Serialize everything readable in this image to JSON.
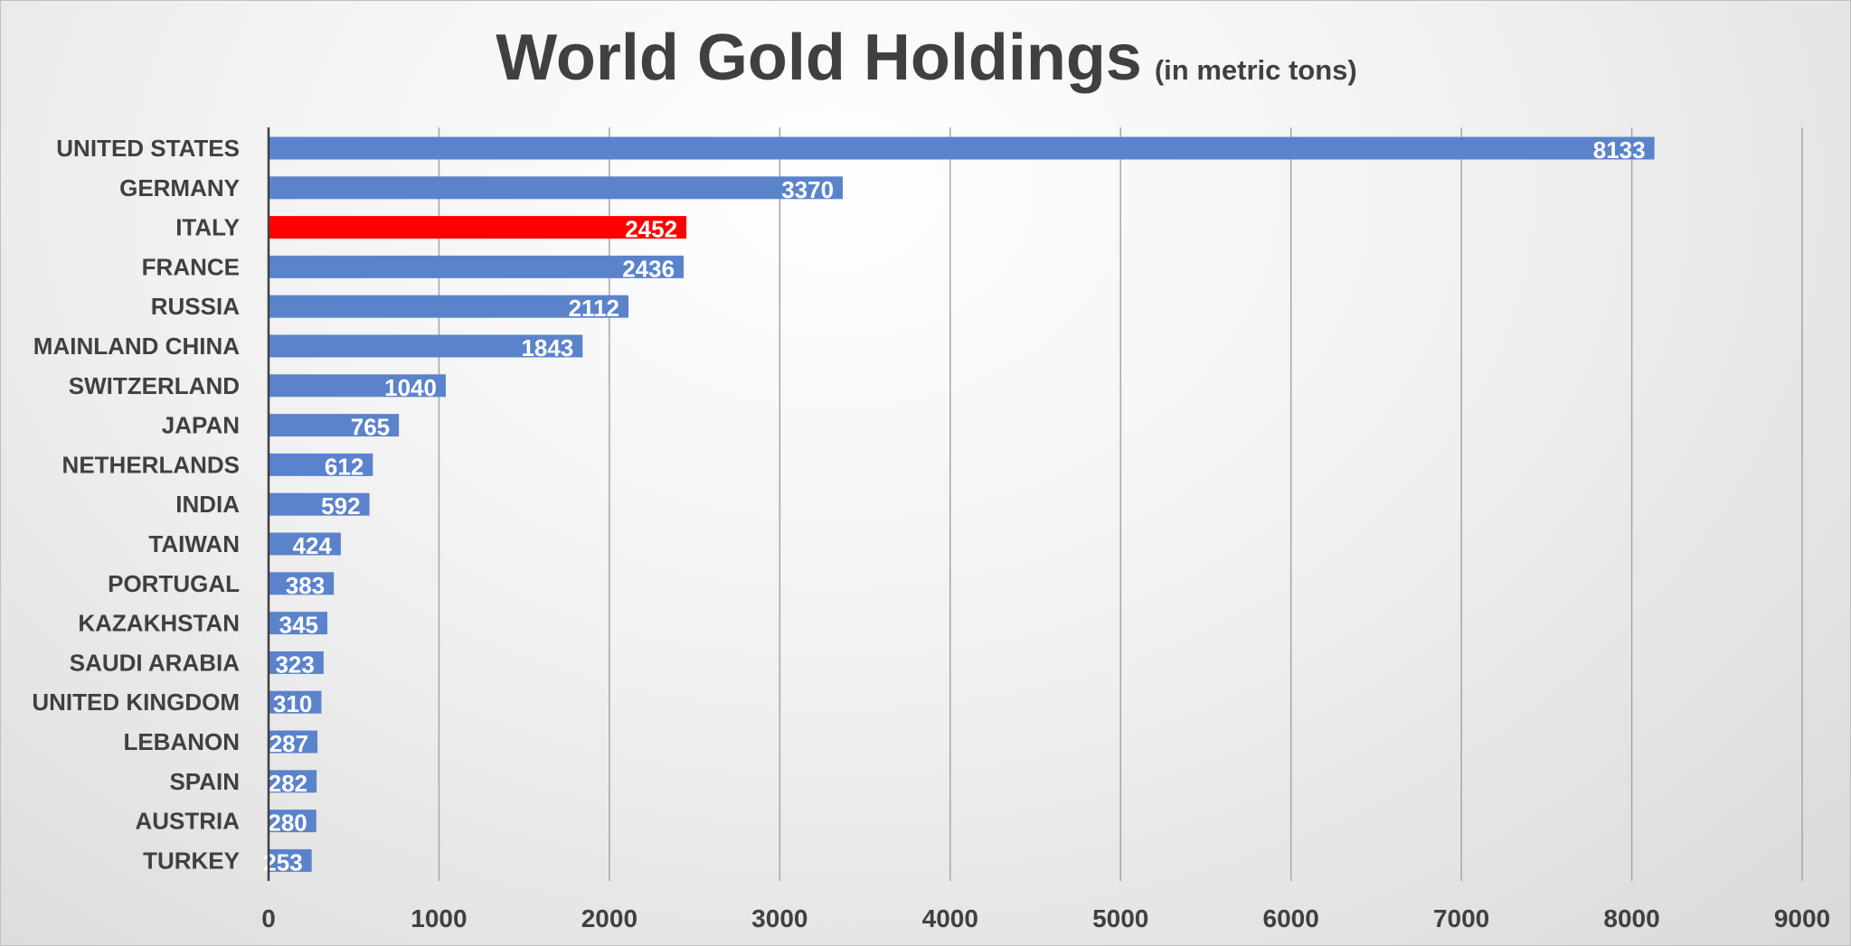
{
  "chart_data": {
    "type": "bar",
    "orientation": "horizontal",
    "title": "World Gold Holdings",
    "subtitle": "(in metric tons)",
    "categories": [
      "UNITED STATES",
      "GERMANY",
      "ITALY",
      "FRANCE",
      "RUSSIA",
      "MAINLAND CHINA",
      "SWITZERLAND",
      "JAPAN",
      "NETHERLANDS",
      "INDIA",
      "TAIWAN",
      "PORTUGAL",
      "KAZAKHSTAN",
      "SAUDI ARABIA",
      "UNITED KINGDOM",
      "LEBANON",
      "SPAIN",
      "AUSTRIA",
      "TURKEY"
    ],
    "values": [
      8133,
      3370,
      2452,
      2436,
      2112,
      1843,
      1040,
      765,
      612,
      592,
      424,
      383,
      345,
      323,
      310,
      287,
      282,
      280,
      253
    ],
    "value_labels": [
      "8133",
      "3370",
      "2452",
      "2436",
      "2112",
      "1843",
      "1040",
      "765",
      "612",
      "592",
      "424",
      "383",
      "345",
      "323",
      "310",
      "287",
      "282",
      "280",
      "253"
    ],
    "highlight": "ITALY",
    "xlim": [
      0,
      9000
    ],
    "xticks": [
      0,
      1000,
      2000,
      3000,
      4000,
      5000,
      6000,
      7000,
      8000,
      9000
    ],
    "xtick_labels": [
      "0",
      "1000",
      "2000",
      "3000",
      "4000",
      "5000",
      "6000",
      "7000",
      "8000",
      "9000"
    ],
    "grid": "vertical",
    "legend": "none",
    "colors": {
      "bar": "#5b83cc",
      "highlight": "#ff0000",
      "grid": "#a6a6a6",
      "axis": "#404040",
      "text": "#404040"
    }
  }
}
